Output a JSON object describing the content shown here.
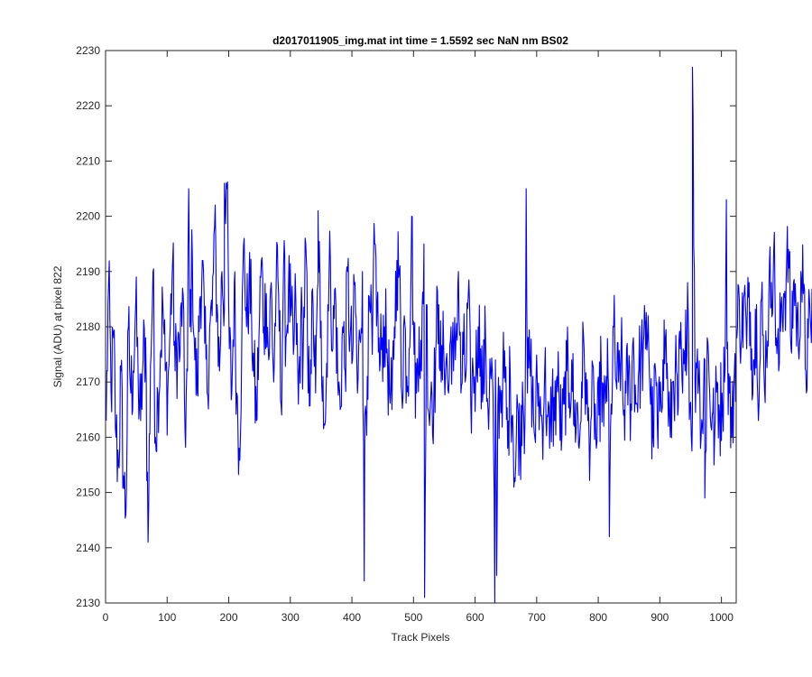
{
  "chart_data": {
    "type": "line",
    "title": "d2017011905_img.mat int time = 1.5592 sec  NaN nm BS02",
    "xlabel": "Track Pixels",
    "ylabel": "Signal (ADU) at pixel 822",
    "xlim": [
      0,
      1024
    ],
    "ylim": [
      2130,
      2230
    ],
    "xticks": [
      0,
      100,
      200,
      300,
      400,
      500,
      600,
      700,
      800,
      900,
      1000
    ],
    "yticks": [
      2130,
      2140,
      2150,
      2160,
      2170,
      2180,
      2190,
      2200,
      2210,
      2220,
      2230
    ],
    "grid": false,
    "line_color": "#0000ff",
    "series": [
      {
        "x_start": 1,
        "x_step": 4,
        "values": [
          2163,
          2188,
          2168,
          2178,
          2160,
          2155,
          2172,
          2153,
          2146,
          2180,
          2168,
          2172,
          2184,
          2170,
          2163,
          2174,
          2178,
          2141,
          2173,
          2190,
          2160,
          2168,
          2175,
          2184,
          2172,
          2168,
          2180,
          2192,
          2172,
          2177,
          2175,
          2187,
          2161,
          2172,
          2180,
          2193,
          2174,
          2168,
          2185,
          2192,
          2177,
          2168,
          2180,
          2182,
          2198,
          2184,
          2172,
          2190,
          2183,
          2205,
          2176,
          2168,
          2188,
          2168,
          2158,
          2176,
          2196,
          2180,
          2188,
          2182,
          2171,
          2163,
          2178,
          2192,
          2180,
          2186,
          2174,
          2188,
          2170,
          2188,
          2186,
          2166,
          2191,
          2178,
          2187,
          2182,
          2175,
          2185,
          2166,
          2181,
          2176,
          2195,
          2168,
          2174,
          2184,
          2168,
          2188,
          2178,
          2171,
          2163,
          2184,
          2192,
          2176,
          2187,
          2170,
          2165,
          2180,
          2172,
          2190,
          2178,
          2174,
          2188,
          2168,
          2178,
          2190,
          2164,
          2171,
          2183,
          2175,
          2195,
          2184,
          2172,
          2178,
          2180,
          2176,
          2168,
          2165,
          2180,
          2192,
          2190,
          2168,
          2182,
          2171,
          2176,
          2200,
          2175,
          2168,
          2180,
          2172,
          2195,
          2184,
          2164,
          2170,
          2166,
          2178,
          2184,
          2170,
          2176,
          2174,
          2168,
          2180,
          2172,
          2178,
          2190,
          2168,
          2175,
          2171,
          2186,
          2166,
          2172,
          2171,
          2180,
          2176,
          2168,
          2178,
          2165,
          2172,
          2168,
          2174,
          2166,
          2168,
          2171,
          2170,
          2158,
          2172,
          2164,
          2152,
          2166,
          2158,
          2170,
          2163,
          2168,
          2174,
          2168,
          2160,
          2170,
          2166,
          2162,
          2172,
          2164,
          2158,
          2168,
          2163,
          2171,
          2166,
          2160,
          2166,
          2172,
          2168,
          2174,
          2162,
          2166,
          2158,
          2170,
          2176,
          2166,
          2160,
          2164,
          2168,
          2158,
          2164,
          2172,
          2162,
          2171,
          2168,
          2166,
          2180,
          2170,
          2170,
          2176,
          2164,
          2168,
          2171,
          2166,
          2178,
          2166,
          2171,
          2174,
          2176,
          2176,
          2182,
          2166,
          2160,
          2172,
          2158,
          2170,
          2174,
          2178,
          2168,
          2160,
          2170,
          2172,
          2164,
          2176,
          2168,
          2172,
          2188,
          2166,
          2164,
          2170,
          2176,
          2168,
          2162,
          2174,
          2178,
          2168,
          2164,
          2160,
          2170,
          2164,
          2168,
          2170,
          2176,
          2168,
          2160,
          2172,
          2178,
          2185,
          2178,
          2186,
          2176,
          2188,
          2176,
          2174,
          2184,
          2166,
          2185,
          2172,
          2176,
          2186,
          2188,
          2194,
          2178,
          2172,
          2184,
          2186,
          2188,
          2194,
          2176,
          2188,
          2184,
          2176,
          2190,
          2186,
          2172,
          2178,
          2180,
          2188,
          2184,
          2192,
          2174,
          2185,
          2196,
          2176,
          2188,
          2196,
          2170,
          2174,
          2186
        ]
      }
    ],
    "spikes": [
      {
        "x": 953,
        "y": 2227
      },
      {
        "x": 973,
        "y": 2149
      },
      {
        "x": 683,
        "y": 2205
      },
      {
        "x": 632,
        "y": 2130
      },
      {
        "x": 635,
        "y": 2135
      },
      {
        "x": 518,
        "y": 2131
      },
      {
        "x": 420,
        "y": 2134
      },
      {
        "x": 193,
        "y": 2206
      },
      {
        "x": 135,
        "y": 2205
      },
      {
        "x": 345,
        "y": 2201
      },
      {
        "x": 818,
        "y": 2142
      },
      {
        "x": 1008,
        "y": 2203
      }
    ]
  }
}
